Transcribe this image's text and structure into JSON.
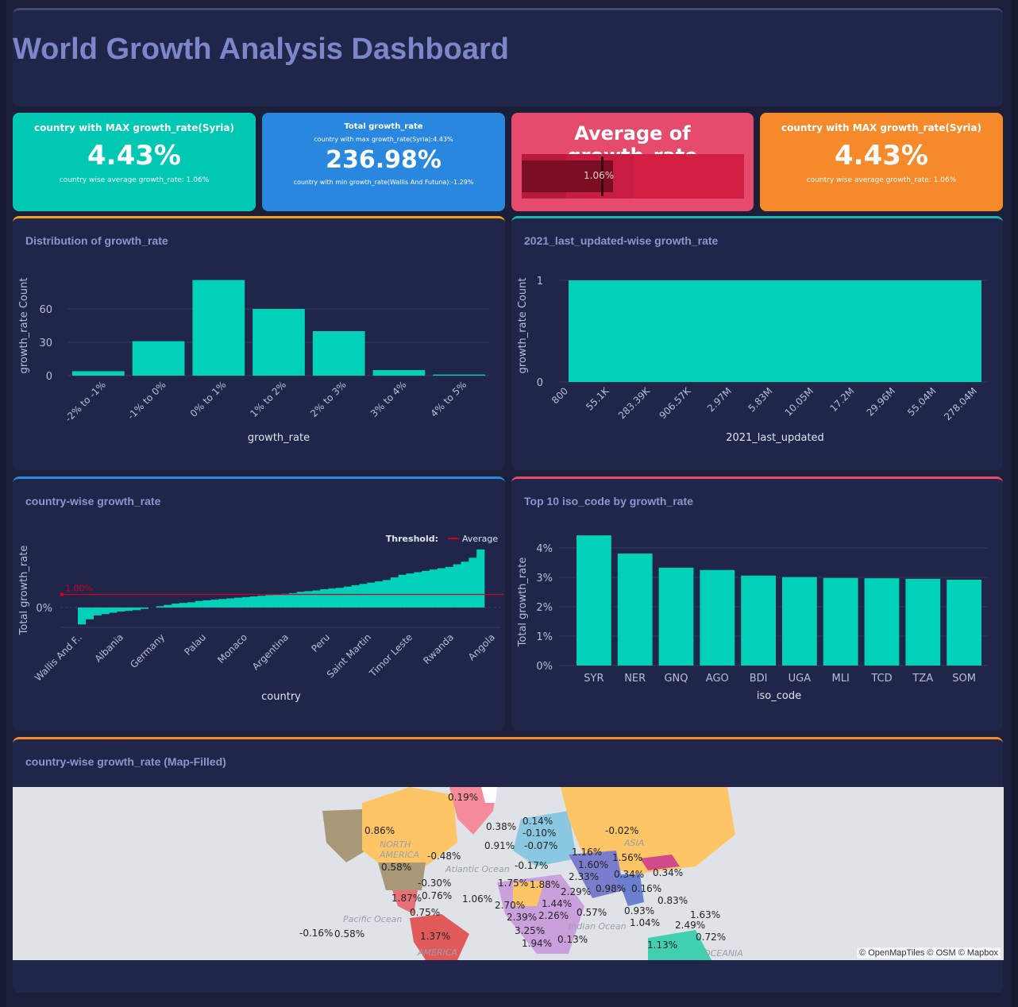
{
  "header": {
    "title": "World Growth Analysis Dashboard"
  },
  "kpis": [
    {
      "title": "country with MAX growth_rate(Syria)",
      "value": "4.43%",
      "sub": "country wise average growth_rate: 1.06%",
      "color": "#00c8b3"
    },
    {
      "title": "Total growth_rate",
      "pre": "country with max growth_rate(Syria):4.43%",
      "value": "236.98%",
      "sub": "country with min growth_rate(Wallis And Futuna):-1.29%",
      "color": "#2a87e0"
    },
    {
      "title": "Average of growth_rate",
      "value": "1.06%",
      "fraction": 0.41,
      "color": "#e64b6e"
    },
    {
      "title": "country with MAX growth_rate(Syria)",
      "value": "4.43%",
      "sub": "country wise average growth_rate: 1.06%",
      "color": "#f68a2b"
    }
  ],
  "chart_data": [
    {
      "type": "bar",
      "title": "Distribution of growth_rate",
      "xlabel": "growth_rate",
      "ylabel": "growth_rate Count",
      "categories": [
        "-2% to -1%",
        "-1% to 0%",
        "0% to 1%",
        "1% to 2%",
        "2% to 3%",
        "3% to 4%",
        "4% to 5%"
      ],
      "values": [
        4,
        31,
        86,
        60,
        40,
        5,
        1
      ],
      "yticks": [
        0,
        30,
        60
      ],
      "color": "#00d1b8"
    },
    {
      "type": "bar",
      "title": "2021_last_updated-wise growth_rate",
      "xlabel": "2021_last_updated",
      "ylabel": "growth_rate Count",
      "tick_labels": [
        "800",
        "55.1K",
        "283.39K",
        "906.57K",
        "2.97M",
        "5.83M",
        "10.05M",
        "17.2M",
        "29.96M",
        "55.04M",
        "278.04M"
      ],
      "yticks": [
        0,
        1
      ],
      "value": 1,
      "color": "#00d1b8"
    },
    {
      "type": "bar",
      "title": "country-wise growth_rate",
      "xlabel": "country",
      "ylabel": "Total growth_rate",
      "tick_labels": [
        "Wallis And F..",
        "Albania",
        "Germany",
        "Palau",
        "Monaco",
        "Argentina",
        "Peru",
        "Saint Martin",
        "Timor Leste",
        "Rwanda",
        "Angola"
      ],
      "ytick": "0%",
      "threshold": {
        "label": "Threshold:",
        "name": "Average",
        "value_label": "1.00%",
        "value": 1.0,
        "color": "#d0021b"
      },
      "values": [
        -1.29,
        -0.9,
        -0.6,
        -0.5,
        -0.4,
        -0.3,
        -0.25,
        -0.2,
        -0.1,
        0,
        0.1,
        0.2,
        0.3,
        0.35,
        0.4,
        0.5,
        0.55,
        0.6,
        0.65,
        0.7,
        0.75,
        0.8,
        0.85,
        0.9,
        0.95,
        1.0,
        1.05,
        1.1,
        1.2,
        1.25,
        1.3,
        1.4,
        1.45,
        1.5,
        1.6,
        1.7,
        1.8,
        1.9,
        2.0,
        2.1,
        2.3,
        2.5,
        2.6,
        2.7,
        2.8,
        2.9,
        3.0,
        3.1,
        3.3,
        3.5,
        3.8,
        4.43
      ],
      "color": "#00d1b8"
    },
    {
      "type": "bar",
      "title": "Top 10 iso_code by growth_rate",
      "xlabel": "iso_code",
      "ylabel": "Total growth_rate",
      "categories": [
        "SYR",
        "NER",
        "GNQ",
        "AGO",
        "BDI",
        "UGA",
        "MLI",
        "TCD",
        "TZA",
        "SOM"
      ],
      "values": [
        4.43,
        3.81,
        3.33,
        3.25,
        3.06,
        3.01,
        2.98,
        2.97,
        2.95,
        2.92
      ],
      "yticks": [
        "0%",
        "1%",
        "2%",
        "3%",
        "4%"
      ],
      "ylim": [
        0,
        4.4
      ],
      "color": "#00d1b8"
    }
  ],
  "map": {
    "title": "country-wise growth_rate (Map-Filled)",
    "attribution": "© OpenMapTiles © OSM © Mapbox",
    "place_labels": [
      "NORTH AMERICA",
      "Pacific Ocean",
      "Atlantic Ocean",
      "ASIA",
      "Indian Ocean",
      "OCEANIA",
      "AMERICA"
    ],
    "labels": [
      "0.19%",
      "0.86%",
      "-0.48%",
      "0.58%",
      "-0.30%",
      "1.87%",
      "0.76%",
      "0.75%",
      "-0.16%",
      "0.58%",
      "1.37%",
      "1.06%",
      "0.38%",
      "0.14%",
      "-0.10%",
      "0.91%",
      "-0.07%",
      "-0.02%",
      "-0.17%",
      "1.16%",
      "1.56%",
      "1.60%",
      "0.34%",
      "0.34%",
      "2.33%",
      "1.75%",
      "1.88%",
      "2.29%",
      "0.98%",
      "0.16%",
      "0.83%",
      "2.70%",
      "1.44%",
      "2.39%",
      "2.26%",
      "0.57%",
      "0.93%",
      "1.63%",
      "1.04%",
      "2.49%",
      "3.25%",
      "1.94%",
      "0.13%",
      "0.72%",
      "1.13%"
    ]
  }
}
